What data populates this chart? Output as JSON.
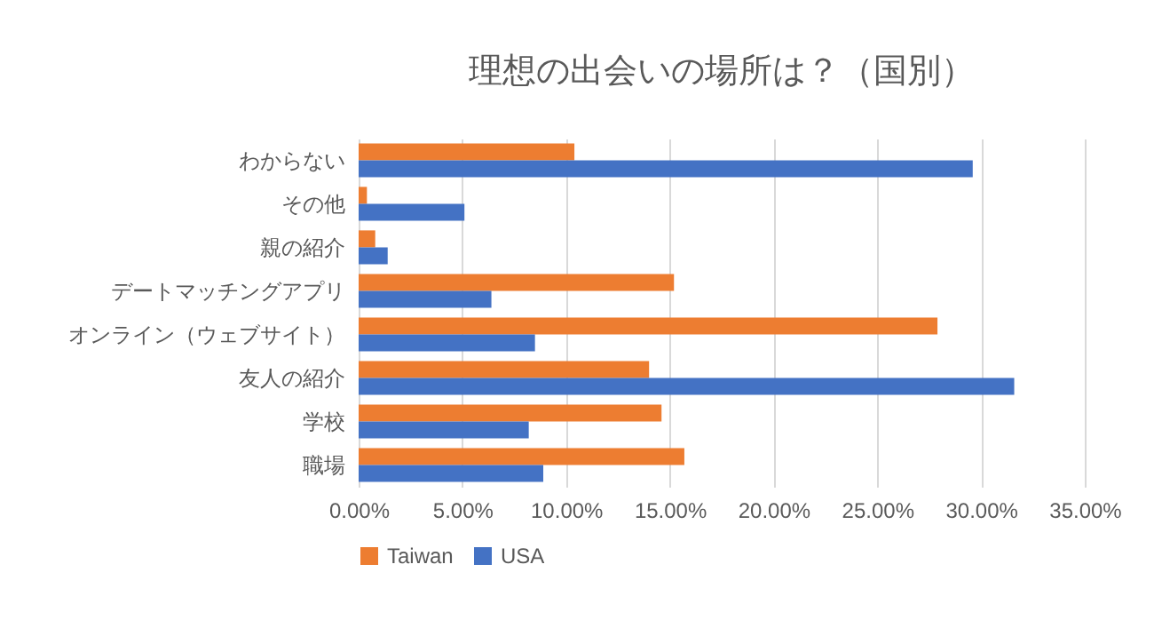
{
  "chart_data": {
    "type": "bar",
    "orientation": "horizontal",
    "title": "理想の出会いの場所は？（国別）",
    "categories": [
      "わからない",
      "その他",
      "親の紹介",
      "デートマッチングアプリ",
      "オンライン（ウェブサイト）",
      "友人の紹介",
      "学校",
      "職場"
    ],
    "series": [
      {
        "name": "Taiwan",
        "color": "#ed7d31",
        "values": [
          10.4,
          0.4,
          0.8,
          15.2,
          27.9,
          14.0,
          14.6,
          15.7
        ]
      },
      {
        "name": "USA",
        "color": "#4472c4",
        "values": [
          29.6,
          5.1,
          1.4,
          6.4,
          8.5,
          31.6,
          8.2,
          8.9
        ]
      }
    ],
    "xlim": [
      0,
      35
    ],
    "xticks": [
      {
        "value": 0,
        "label": "0.00%"
      },
      {
        "value": 5,
        "label": "5.00%"
      },
      {
        "value": 10,
        "label": "10.00%"
      },
      {
        "value": 15,
        "label": "15.00%"
      },
      {
        "value": 20,
        "label": "20.00%"
      },
      {
        "value": 25,
        "label": "25.00%"
      },
      {
        "value": 30,
        "label": "30.00%"
      },
      {
        "value": 35,
        "label": "35.00%"
      }
    ],
    "grid": "x",
    "legend": "bottom"
  }
}
